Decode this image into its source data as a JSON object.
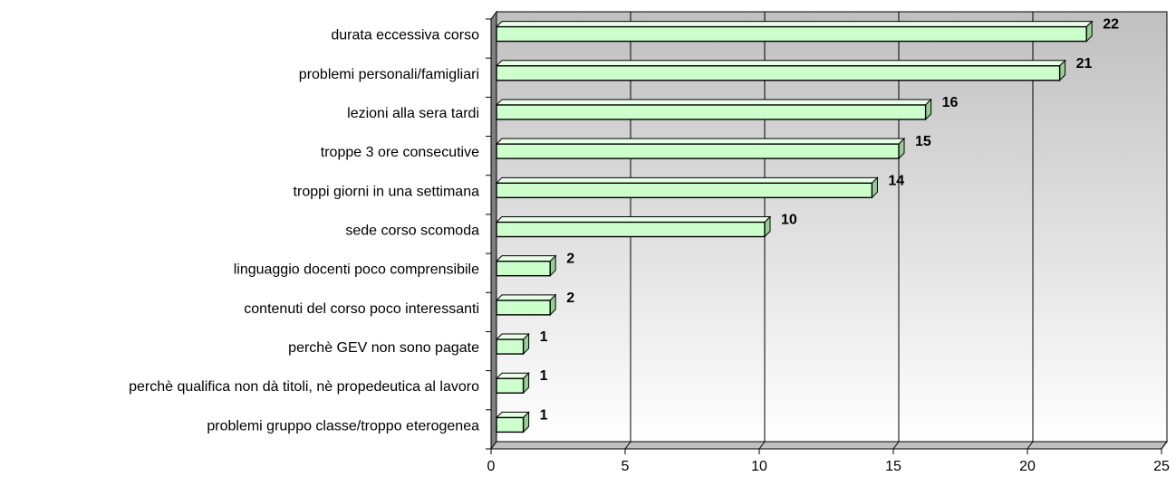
{
  "chart_data": {
    "type": "bar",
    "orientation": "horizontal",
    "categories": [
      "durata eccessiva corso",
      "problemi personali/famigliari",
      "lezioni alla sera tardi",
      "troppe 3 ore consecutive",
      "troppi giorni in una settimana",
      "sede corso scomoda",
      "linguaggio docenti poco comprensibile",
      "contenuti del corso poco interessanti",
      "perchè GEV non sono pagate",
      "perchè qualifica non dà titoli, nè propedeutica al lavoro",
      "problemi gruppo classe/troppo eterogenea"
    ],
    "values": [
      22,
      21,
      16,
      15,
      14,
      10,
      2,
      2,
      1,
      1,
      1
    ],
    "data_labels": [
      "22",
      "21",
      "16",
      "15",
      "14",
      "10",
      "2",
      "2",
      "1",
      "1",
      "1"
    ],
    "x_ticks": [
      "0",
      "5",
      "10",
      "15",
      "20",
      "25"
    ],
    "xlim": [
      0,
      25
    ],
    "grid": true,
    "legend": "none",
    "colors": {
      "bar_face": "#ccffcc",
      "bar_edge": "#000000",
      "plot_top": "#c0c0c0",
      "plot_bottom": "#ffffff",
      "left_wall": "#808080",
      "floor": "#c0c0c0"
    }
  }
}
